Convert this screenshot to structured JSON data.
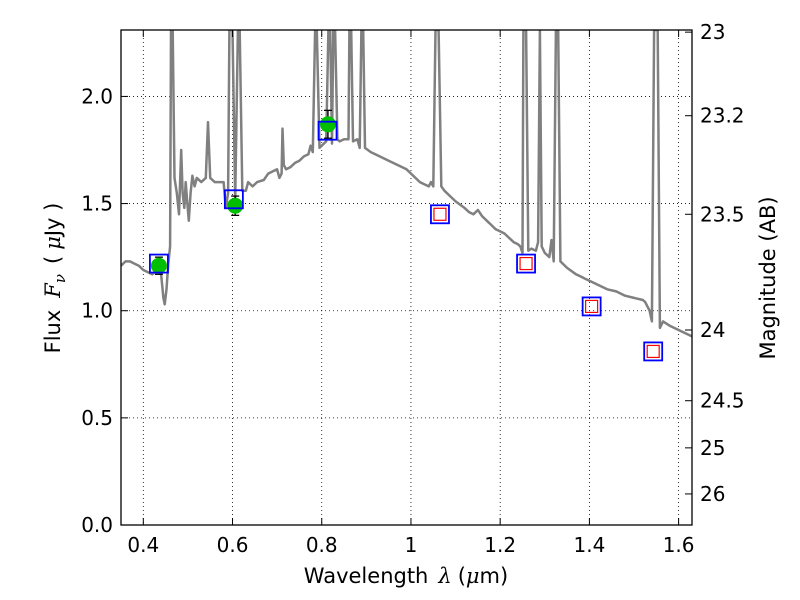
{
  "chart_data": {
    "type": "scatter",
    "xlabel": {
      "prefix": "Wavelength",
      "symbol": "λ",
      "unit_open": "(",
      "unit_mu": "μ",
      "unit_rest": "m)"
    },
    "ylabel": {
      "prefix": "Flux",
      "symbol": "F",
      "sub": "ν",
      "unit_open": "(",
      "unit_mu": "μ",
      "unit_rest": "Jy )"
    },
    "y2label": "Magnitude (AB)",
    "xlim": [
      0.35,
      1.63
    ],
    "ylim": [
      0.0,
      2.31
    ],
    "grid": true,
    "xticks": [
      {
        "value": 0.4,
        "label": "0.4"
      },
      {
        "value": 0.6,
        "label": "0.6"
      },
      {
        "value": 0.8,
        "label": "0.8"
      },
      {
        "value": 1.0,
        "label": "1"
      },
      {
        "value": 1.2,
        "label": "1.2"
      },
      {
        "value": 1.4,
        "label": "1.4"
      },
      {
        "value": 1.6,
        "label": "1.6"
      }
    ],
    "yticks": [
      {
        "value": 0.0,
        "label": "0.0"
      },
      {
        "value": 0.5,
        "label": "0.5"
      },
      {
        "value": 1.0,
        "label": "1.0"
      },
      {
        "value": 1.5,
        "label": "1.5"
      },
      {
        "value": 2.0,
        "label": "2.0"
      }
    ],
    "y2ticks": [
      {
        "label": "23",
        "flux": 2.3
      },
      {
        "label": "23.2",
        "flux": 1.91
      },
      {
        "label": "23.5",
        "flux": 1.45
      },
      {
        "label": "24",
        "flux": 0.91
      },
      {
        "label": "24.5",
        "flux": 0.58
      },
      {
        "label": "25",
        "flux": 0.36
      },
      {
        "label": "26",
        "flux": 0.145
      }
    ],
    "series": [
      {
        "type": "line",
        "color": "#808080",
        "points": [
          [
            0.35,
            1.21
          ],
          [
            0.36,
            1.23
          ],
          [
            0.37,
            1.23
          ],
          [
            0.38,
            1.22
          ],
          [
            0.39,
            1.21
          ],
          [
            0.4,
            1.19
          ],
          [
            0.41,
            1.18
          ],
          [
            0.42,
            1.17
          ],
          [
            0.43,
            1.19
          ],
          [
            0.44,
            1.17
          ],
          [
            0.445,
            1.06
          ],
          [
            0.448,
            1.03
          ],
          [
            0.452,
            1.1
          ],
          [
            0.456,
            1.22
          ],
          [
            0.46,
            1.3
          ],
          [
            0.462,
            2.31
          ],
          [
            0.466,
            2.31
          ],
          [
            0.47,
            1.62
          ],
          [
            0.475,
            1.55
          ],
          [
            0.48,
            1.45
          ],
          [
            0.485,
            1.75
          ],
          [
            0.488,
            1.55
          ],
          [
            0.492,
            1.48
          ],
          [
            0.495,
            1.6
          ],
          [
            0.498,
            1.52
          ],
          [
            0.502,
            1.42
          ],
          [
            0.506,
            1.55
          ],
          [
            0.51,
            1.63
          ],
          [
            0.515,
            1.58
          ],
          [
            0.52,
            1.62
          ],
          [
            0.53,
            1.6
          ],
          [
            0.54,
            1.62
          ],
          [
            0.545,
            1.88
          ],
          [
            0.55,
            1.62
          ],
          [
            0.56,
            1.6
          ],
          [
            0.57,
            1.6
          ],
          [
            0.58,
            1.6
          ],
          [
            0.585,
            1.48
          ],
          [
            0.59,
            1.55
          ],
          [
            0.593,
            2.31
          ],
          [
            0.6,
            2.31
          ],
          [
            0.606,
            1.52
          ],
          [
            0.612,
            2.31
          ],
          [
            0.616,
            2.31
          ],
          [
            0.622,
            1.56
          ],
          [
            0.63,
            1.56
          ],
          [
            0.635,
            1.6
          ],
          [
            0.645,
            1.58
          ],
          [
            0.655,
            1.6
          ],
          [
            0.67,
            1.61
          ],
          [
            0.68,
            1.64
          ],
          [
            0.69,
            1.65
          ],
          [
            0.7,
            1.66
          ],
          [
            0.705,
            1.62
          ],
          [
            0.71,
            1.64
          ],
          [
            0.712,
            1.85
          ],
          [
            0.715,
            1.68
          ],
          [
            0.72,
            1.66
          ],
          [
            0.73,
            1.67
          ],
          [
            0.74,
            1.69
          ],
          [
            0.75,
            1.7
          ],
          [
            0.76,
            1.72
          ],
          [
            0.77,
            1.73
          ],
          [
            0.775,
            1.77
          ],
          [
            0.78,
            1.74
          ],
          [
            0.785,
            2.31
          ],
          [
            0.789,
            2.31
          ],
          [
            0.795,
            1.76
          ],
          [
            0.8,
            1.77
          ],
          [
            0.81,
            1.79
          ],
          [
            0.815,
            2.31
          ],
          [
            0.819,
            2.31
          ],
          [
            0.823,
            1.78
          ],
          [
            0.826,
            2.31
          ],
          [
            0.83,
            2.31
          ],
          [
            0.835,
            1.8
          ],
          [
            0.84,
            1.79
          ],
          [
            0.85,
            1.8
          ],
          [
            0.86,
            1.8
          ],
          [
            0.862,
            2.31
          ],
          [
            0.866,
            2.31
          ],
          [
            0.87,
            1.79
          ],
          [
            0.88,
            1.8
          ],
          [
            0.885,
            1.76
          ],
          [
            0.889,
            2.31
          ],
          [
            0.893,
            2.31
          ],
          [
            0.897,
            1.76
          ],
          [
            0.91,
            1.74
          ],
          [
            0.93,
            1.72
          ],
          [
            0.95,
            1.7
          ],
          [
            0.97,
            1.68
          ],
          [
            0.99,
            1.66
          ],
          [
            1.0,
            1.64
          ],
          [
            1.02,
            1.6
          ],
          [
            1.03,
            1.59
          ],
          [
            1.04,
            1.58
          ],
          [
            1.045,
            1.6
          ],
          [
            1.05,
            1.58
          ],
          [
            1.055,
            2.31
          ],
          [
            1.062,
            2.31
          ],
          [
            1.068,
            1.58
          ],
          [
            1.075,
            1.56
          ],
          [
            1.09,
            1.53
          ],
          [
            1.1,
            1.51
          ],
          [
            1.12,
            1.48
          ],
          [
            1.13,
            1.46
          ],
          [
            1.14,
            1.45
          ],
          [
            1.15,
            1.47
          ],
          [
            1.16,
            1.44
          ],
          [
            1.17,
            1.42
          ],
          [
            1.18,
            1.4
          ],
          [
            1.19,
            1.38
          ],
          [
            1.2,
            1.37
          ],
          [
            1.21,
            1.36
          ],
          [
            1.22,
            1.34
          ],
          [
            1.23,
            1.32
          ],
          [
            1.24,
            1.31
          ],
          [
            1.245,
            1.3
          ],
          [
            1.25,
            1.27
          ],
          [
            1.252,
            2.31
          ],
          [
            1.258,
            2.31
          ],
          [
            1.263,
            1.28
          ],
          [
            1.27,
            1.29
          ],
          [
            1.28,
            1.28
          ],
          [
            1.285,
            1.32
          ],
          [
            1.289,
            2.31
          ],
          [
            1.293,
            1.3
          ],
          [
            1.3,
            1.27
          ],
          [
            1.31,
            1.25
          ],
          [
            1.315,
            1.33
          ],
          [
            1.32,
            1.23
          ],
          [
            1.325,
            2.31
          ],
          [
            1.33,
            2.31
          ],
          [
            1.335,
            1.23
          ],
          [
            1.35,
            1.2
          ],
          [
            1.37,
            1.17
          ],
          [
            1.38,
            1.16
          ],
          [
            1.39,
            1.15
          ],
          [
            1.4,
            1.14
          ],
          [
            1.42,
            1.12
          ],
          [
            1.44,
            1.1
          ],
          [
            1.46,
            1.09
          ],
          [
            1.48,
            1.07
          ],
          [
            1.5,
            1.06
          ],
          [
            1.52,
            1.05
          ],
          [
            1.525,
            1.04
          ],
          [
            1.53,
            1.02
          ],
          [
            1.535,
            1.0
          ],
          [
            1.54,
            0.95
          ],
          [
            1.545,
            2.31
          ],
          [
            1.553,
            2.31
          ],
          [
            1.558,
            0.92
          ],
          [
            1.565,
            0.95
          ],
          [
            1.58,
            0.93
          ],
          [
            1.6,
            0.91
          ],
          [
            1.62,
            0.89
          ],
          [
            1.63,
            0.88
          ]
        ]
      },
      {
        "type": "errorbar",
        "marker": "circle",
        "color": "#00bf00",
        "points": [
          {
            "x": 0.435,
            "y": 1.21,
            "err": 0.04
          },
          {
            "x": 0.606,
            "y": 1.49,
            "err": 0.045
          },
          {
            "x": 0.814,
            "y": 1.87,
            "err": 0.065
          }
        ]
      },
      {
        "type": "scatter",
        "marker": "square",
        "color": "#0000ff",
        "points": [
          [
            0.435,
            1.22
          ],
          [
            0.603,
            1.52
          ],
          [
            0.813,
            1.84
          ],
          [
            1.065,
            1.45
          ],
          [
            1.258,
            1.22
          ],
          [
            1.405,
            1.02
          ],
          [
            1.543,
            0.81
          ]
        ]
      },
      {
        "type": "scatter",
        "marker": "square",
        "color": "#ff0000",
        "points": [
          [
            1.065,
            1.45
          ],
          [
            1.258,
            1.22
          ],
          [
            1.405,
            1.02
          ],
          [
            1.543,
            0.81
          ]
        ]
      }
    ]
  }
}
